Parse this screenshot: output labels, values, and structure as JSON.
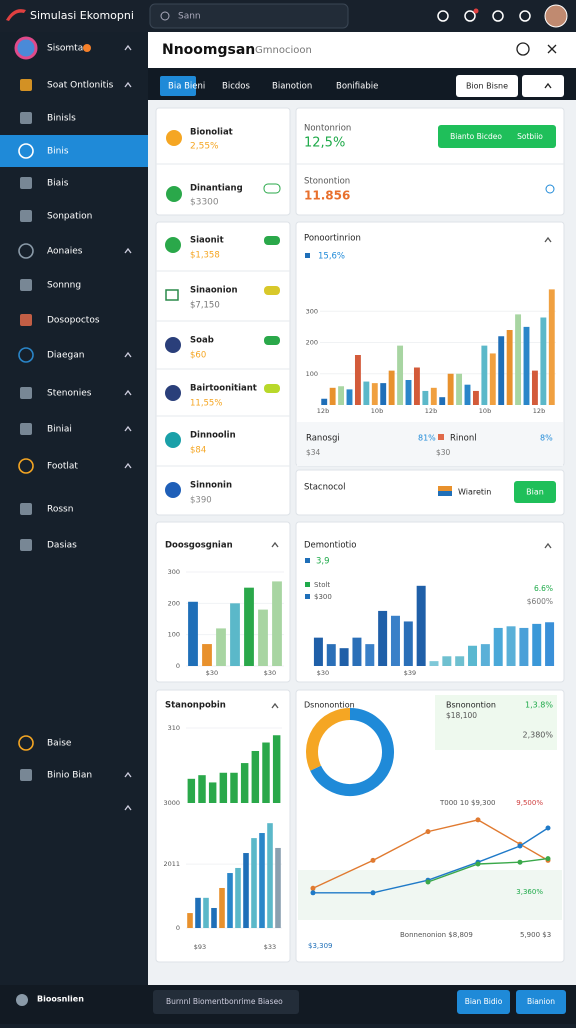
{
  "app": {
    "title": "Simulasi Ekomopni",
    "search": "Sann"
  },
  "sidebar": {
    "active": 3,
    "items": [
      "Sisomtar",
      "Soat Ontlonitis",
      "Binisls",
      "Binis",
      "Biais",
      "Sonpation",
      "Aonaies",
      "Sonnng",
      "Dosopoctos",
      "Diaegan",
      "Stenonies",
      "Biniai",
      "Footlat",
      "Rossn",
      "Dasias",
      "Baise",
      "Binio Bian"
    ]
  },
  "header": {
    "title": "Nnoomgsan",
    "subtitle": "Gmnocioon"
  },
  "tabs": {
    "active": 0,
    "items": [
      "Bia Bieni",
      "Bicdos",
      "Bianotion",
      "Bonifiabie"
    ],
    "buttons": [
      "Bion Bisne"
    ]
  },
  "stats": [
    {
      "label": "Bionoliat",
      "value": "2,55%"
    },
    {
      "label": "Dinantiang",
      "value": "$3300"
    }
  ],
  "summary": {
    "label": "Nontonrion",
    "value": "12,5%",
    "button": "Bianto Bicdeo",
    "button_extra": "Sotbiio",
    "label2": "Stonontion",
    "value2": "11.856"
  },
  "list": [
    {
      "label": "Siaonit",
      "value": "$1,358"
    },
    {
      "label": "Sinaonion",
      "value": "$7,150"
    },
    {
      "label": "Soab",
      "value": "$60"
    },
    {
      "label": "Bairtoonitiant",
      "value": "11,55%"
    },
    {
      "label": "Dinnoolin",
      "value": "$84"
    },
    {
      "label": "Sinnonin",
      "value": "$390"
    }
  ],
  "main_chart": {
    "type": "bar",
    "title": "Ponoortinrion",
    "legend": "15,6%",
    "values": [
      20,
      55,
      60,
      50,
      160,
      75,
      70,
      70,
      110,
      190,
      80,
      120,
      45,
      55,
      25,
      100,
      100,
      65,
      45,
      190,
      165,
      220,
      240,
      290,
      250,
      110,
      280,
      370
    ],
    "colors": [
      "#1f6fb8",
      "#e8912d",
      "#a8d5a2",
      "#2a86c9",
      "#d35b3a",
      "#5bb8c9",
      "#f0a040"
    ],
    "ylim": [
      0,
      400
    ],
    "yticks": [
      100,
      200,
      300
    ],
    "x_labels": [
      "12b",
      "10b",
      "12b",
      "10b",
      "12b"
    ]
  },
  "breakdown": [
    {
      "label": "Ranosgi",
      "value": "$34",
      "pct": "81%"
    },
    {
      "label": "Rinonl",
      "value": "$30",
      "pct": "8%"
    }
  ],
  "stacnocol": {
    "label": "Stacnocol",
    "item": "Wiaretin",
    "button": "Bian"
  },
  "chart_left": {
    "type": "bar",
    "title": "Doosgosgnian",
    "values": [
      205,
      70,
      120,
      200,
      250,
      180,
      270
    ],
    "colors": [
      "#1f6fb8",
      "#e8912d",
      "#a8d5a2",
      "#5bb8c9",
      "#2aa84a",
      "#a8d5a2",
      "#a8d5a2"
    ],
    "ylim": [
      0,
      300
    ],
    "yticks": [
      0,
      100,
      200,
      300
    ],
    "x_labels": [
      "$30",
      "$30"
    ]
  },
  "chart_right": {
    "type": "bar",
    "title": "Demontiotio",
    "legend": "3,9",
    "legend_items": [
      "Stolt",
      "$300"
    ],
    "side_labels": [
      "6.6%",
      "$600%"
    ],
    "values": [
      35,
      27,
      22,
      35,
      27,
      68,
      62,
      55,
      99,
      6,
      12,
      12,
      25,
      27,
      47,
      49,
      47,
      52,
      54
    ],
    "colors": [
      "#1f5fa8",
      "#2a6fb8",
      "#1f5fa8",
      "#2a6fb8",
      "#3a80c8",
      "#1f5fa8",
      "#3a80c8",
      "#2a6fb8",
      "#1f5fa8",
      "#7fc8d8",
      "#6fc0d0",
      "#6fc0d0",
      "#5ab8d0",
      "#5ab0d8",
      "#4aa8d8",
      "#5ab0d8",
      "#4aa0d8",
      "#3a98d8",
      "#3a90d8"
    ],
    "ylim": [
      0,
      100
    ],
    "x_labels": [
      "$30",
      "$39"
    ]
  },
  "chart_stack": {
    "title": "Stanonpobin",
    "top": {
      "type": "bar",
      "values": [
        100,
        115,
        85,
        125,
        125,
        165,
        215,
        250,
        280
      ],
      "colors": [
        "#2aa84a"
      ],
      "ylim": [
        0,
        310
      ],
      "yticks": [
        310
      ],
      "base_label": "3000"
    },
    "bottom": {
      "type": "bar",
      "values": [
        470,
        950,
        950,
        630,
        1260,
        1730,
        1890,
        2360,
        2830,
        2990,
        3300,
        2520
      ],
      "colors": [
        "#e8912d",
        "#1f6fb8",
        "#5bb8c9",
        "#1f6fb8",
        "#e8912d",
        "#2a86c9",
        "#5bb8c9",
        "#1f6fb8",
        "#5bb8c9",
        "#2a86c9",
        "#5bb8c9",
        "#8aa0b0"
      ],
      "ylim": [
        0,
        3400
      ],
      "yticks": [
        0,
        2011
      ]
    },
    "x_labels": [
      "$93",
      "$33"
    ]
  },
  "donut": {
    "type": "pie",
    "values": [
      68,
      32
    ],
    "colors": [
      "#1f8ad8",
      "#f5a623"
    ],
    "title": "Dsnonontion",
    "label": "Bsnonontion",
    "value": "$18,100",
    "pcts": [
      "1,3.8%",
      "2,380%"
    ]
  },
  "line_chart": {
    "type": "line",
    "ylim": [
      0,
      100
    ],
    "series": [
      {
        "color": "#e07a30",
        "values": [
          13,
          44,
          76,
          89,
          62,
          44
        ]
      },
      {
        "color": "#1f7ac8",
        "values": [
          8,
          8,
          22,
          42,
          60,
          80
        ]
      },
      {
        "color": "#3aa84a",
        "values": [
          null,
          null,
          20,
          40,
          42,
          46
        ]
      }
    ],
    "labels": {
      "top": "T000 10 $9,300",
      "top_right": "9,500%",
      "right": "3,360%",
      "bottom_left": "$3,309",
      "bottom_mid": "Bonnenonion $8,809",
      "bottom_right": "5,900 $3"
    }
  },
  "footer": {
    "brand": "Bioosnlien",
    "input": "Burnnl Biomentbonrime Biaseo",
    "buttons": [
      "Bian Bidio",
      "Bianion"
    ]
  }
}
